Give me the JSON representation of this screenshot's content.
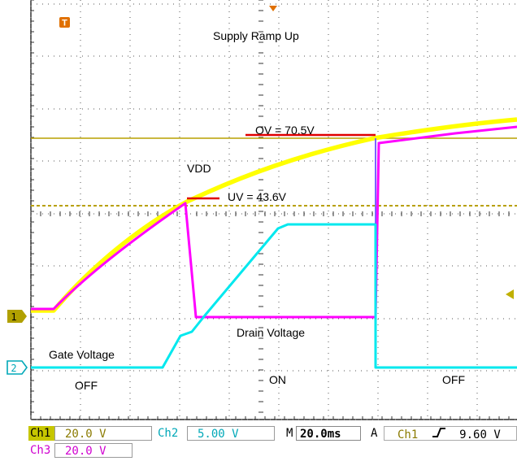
{
  "screen": {
    "title": "Supply Ramp Up",
    "labels": {
      "vdd": "VDD",
      "ov": "OV = 70.5V",
      "uv": "UV = 43.6V",
      "drain": "Drain Voltage",
      "gate": "Gate Voltage",
      "off_left": "OFF",
      "on": "ON",
      "off_right": "OFF"
    },
    "markers": {
      "trigger": "T",
      "ch1": "1",
      "ch2": "2"
    }
  },
  "status_bar": {
    "ch1_label": "Ch1",
    "ch1_scale": "20.0 V",
    "ch2_label": "Ch2",
    "ch2_scale": "5.00 V",
    "timebase_label": "M",
    "timebase_value": "20.0ms",
    "trigger_mode": "A",
    "trigger_source": "Ch1",
    "trigger_slope_icon": "rising-edge-icon",
    "trigger_level": "9.60 V",
    "ch3_label": "Ch3",
    "ch3_scale": "20.0 V"
  },
  "colors": {
    "vdd": "#ffff00",
    "drain": "#ff00ff",
    "gate": "#00e8ee",
    "threshold_line": "#b8a000",
    "marker_red": "#e00000",
    "ch1_tag": "#c6c600",
    "ch2_text": "#00a8b8",
    "ch3_text": "#d000d0"
  }
}
